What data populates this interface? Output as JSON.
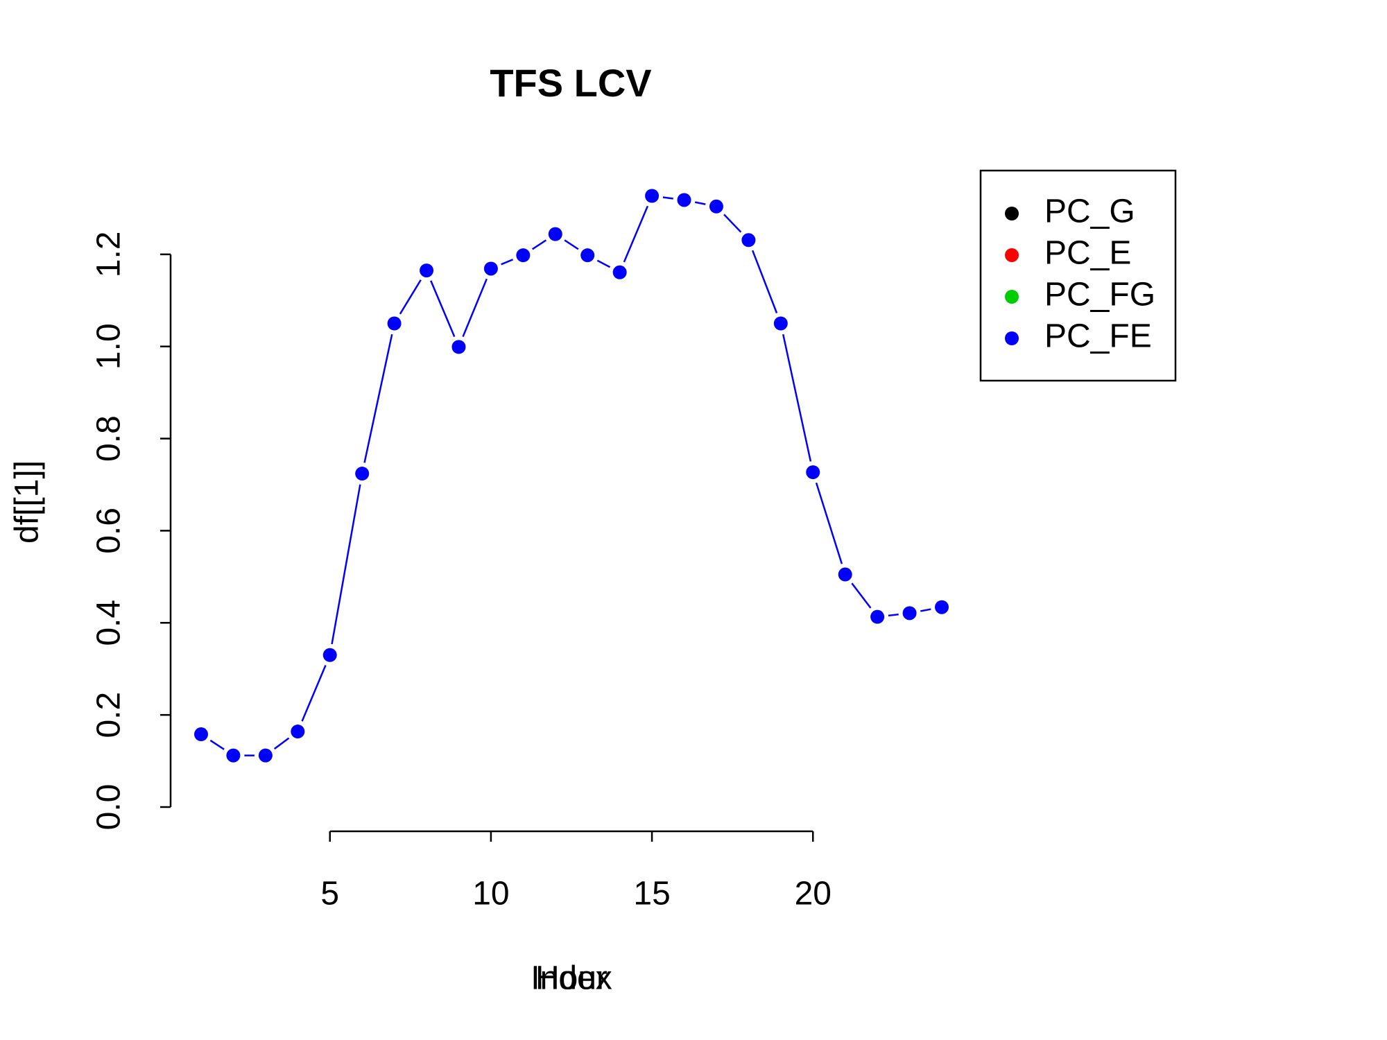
{
  "chart_data": {
    "type": "line",
    "title": "TFS LCV",
    "x_label": [
      "Index",
      "Hour"
    ],
    "y_label": "df[[1]]",
    "x": [
      1,
      2,
      3,
      4,
      5,
      6,
      7,
      8,
      9,
      10,
      11,
      12,
      13,
      14,
      15,
      16,
      17,
      18,
      19,
      20,
      21,
      22,
      23,
      24
    ],
    "series": [
      {
        "name": "PC_FE",
        "color": "#0000ff",
        "values": [
          0.158,
          0.112,
          0.112,
          0.164,
          0.33,
          0.724,
          1.05,
          1.165,
          0.999,
          1.169,
          1.198,
          1.244,
          1.198,
          1.161,
          1.327,
          1.318,
          1.304,
          1.231,
          1.05,
          0.727,
          0.505,
          0.413,
          0.421,
          0.434
        ]
      }
    ],
    "legend": {
      "position": "topright",
      "entries": [
        {
          "name": "PC_G",
          "color": "#000000"
        },
        {
          "name": "PC_E",
          "color": "#ff0000"
        },
        {
          "name": "PC_FG",
          "color": "#00cd00"
        },
        {
          "name": "PC_FE",
          "color": "#0000ff"
        }
      ]
    },
    "xlim": [
      1,
      24
    ],
    "xticks": [
      5,
      10,
      15,
      20
    ],
    "ylim": [
      0,
      1.4
    ],
    "yticks": [
      {
        "value": 0,
        "label": "0.0"
      },
      0.2,
      0.4,
      0.6,
      0.8,
      {
        "value": 1,
        "label": "1.0"
      },
      1.2
    ]
  }
}
